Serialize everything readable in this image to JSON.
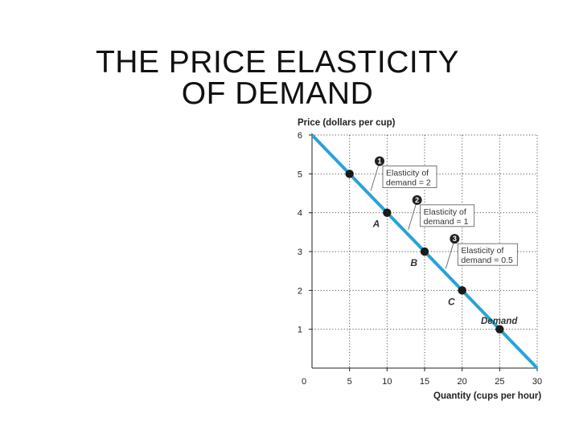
{
  "slide": {
    "title_line1": "THE PRICE ELASTICITY",
    "title_line2": "OF DEMAND"
  },
  "chart_data": {
    "type": "line",
    "ylabel": "Price (dollars per cup)",
    "xlabel": "Quantity (cups per hour)",
    "xlim": [
      0,
      30
    ],
    "ylim": [
      0,
      6
    ],
    "x_ticks": [
      0,
      5,
      10,
      15,
      20,
      25,
      30
    ],
    "y_ticks": [
      1,
      2,
      3,
      4,
      5,
      6
    ],
    "grid": "dotted",
    "line_color": "#29a3d6",
    "series": [
      {
        "name": "Demand",
        "x": [
          0,
          30
        ],
        "y": [
          6,
          0
        ]
      }
    ],
    "points": [
      {
        "x": 5,
        "y": 5,
        "label": ""
      },
      {
        "x": 10,
        "y": 4,
        "label": "A"
      },
      {
        "x": 15,
        "y": 3,
        "label": "B"
      },
      {
        "x": 20,
        "y": 2,
        "label": "C"
      },
      {
        "x": 25,
        "y": 1,
        "label": ""
      }
    ],
    "annotations": [
      {
        "badge": "1",
        "line1": "Elasticity of",
        "line2": "demand = 2",
        "x": 7.5,
        "y": 4.5
      },
      {
        "badge": "2",
        "line1": "Elasticity of",
        "line2": "demand = 1",
        "x": 12.5,
        "y": 3.5
      },
      {
        "badge": "3",
        "line1": "Elasticity of",
        "line2": "demand = 0.5",
        "x": 17.5,
        "y": 2.5
      }
    ]
  }
}
